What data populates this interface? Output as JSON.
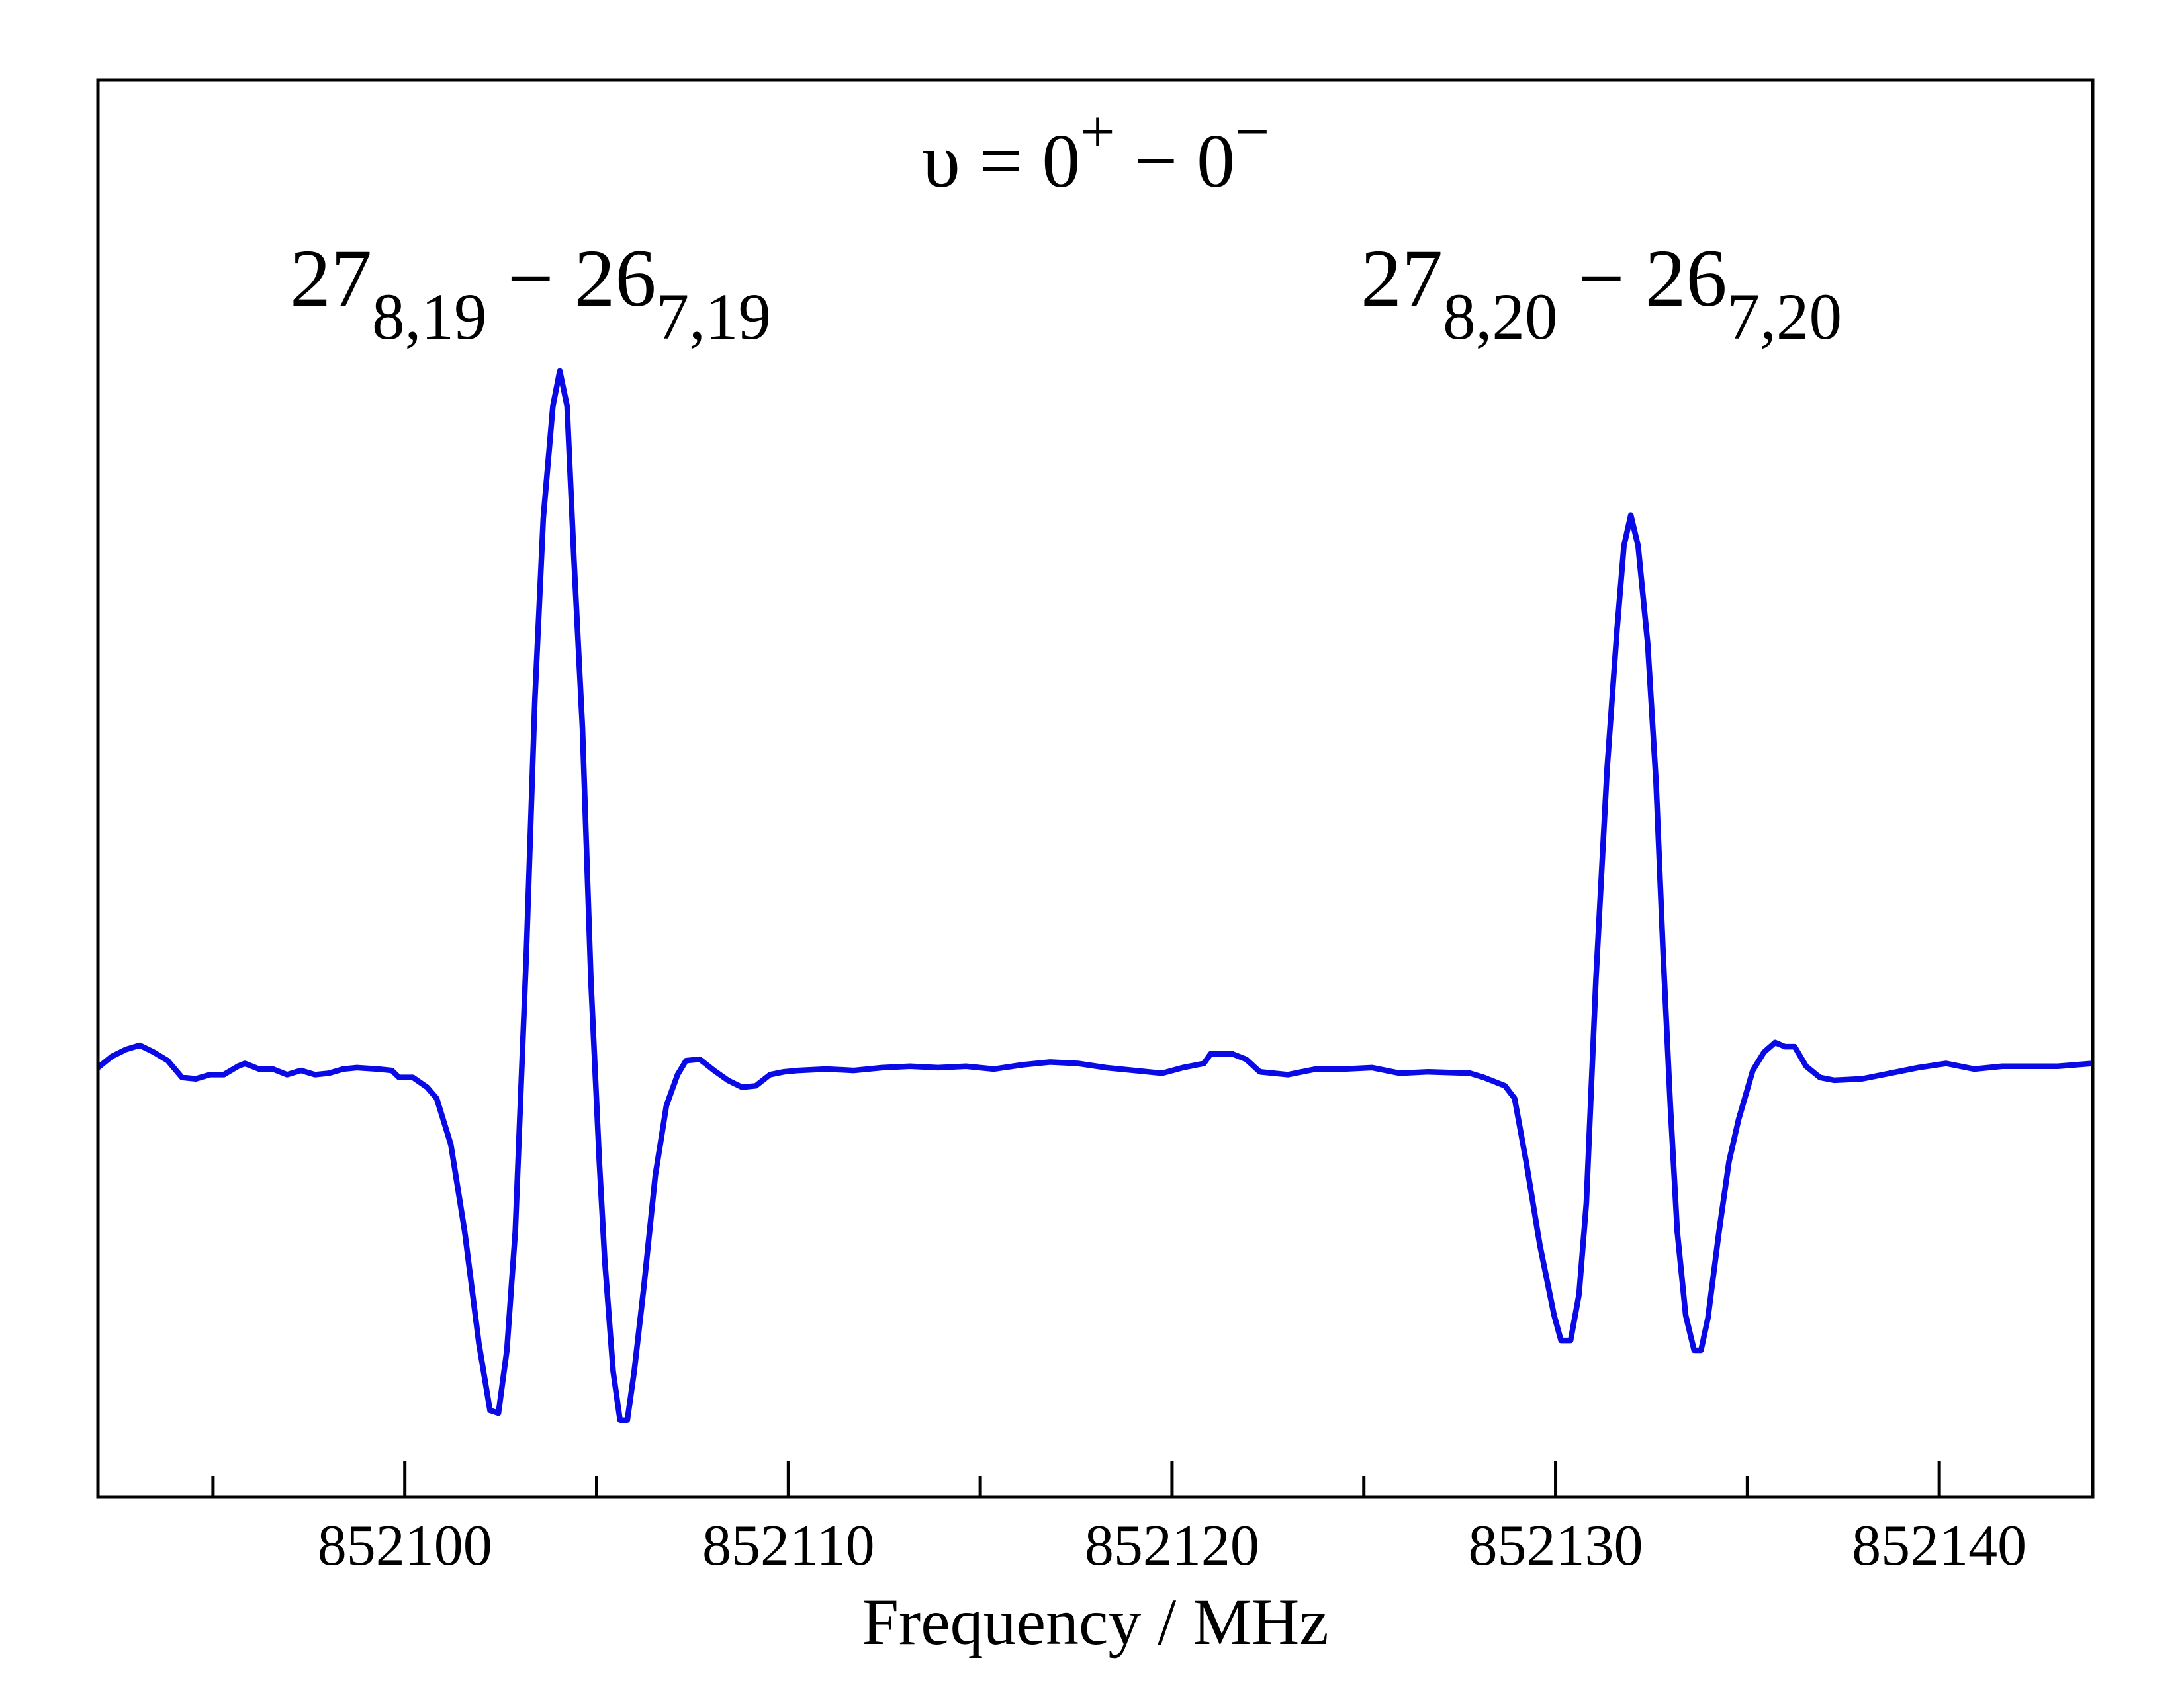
{
  "chart_data": {
    "type": "line",
    "xlabel": "Frequency / MHz",
    "color": "#0a0ae6",
    "xlim": [
      852092,
      852144
    ],
    "ylim": [
      -0.61,
      1.416
    ],
    "xticks": [
      852100,
      852110,
      852120,
      852130,
      852140
    ],
    "xminorticks": [
      852095,
      852105,
      852115,
      852125,
      852135
    ],
    "annotations": [
      {
        "segments": [
          {
            "text": "υ = 0"
          },
          {
            "sup": "+"
          },
          {
            "text": " − 0"
          },
          {
            "sup": "−"
          }
        ]
      },
      {
        "segments": [
          {
            "text": "27"
          },
          {
            "sub": "8,19"
          },
          {
            "text": " − 26"
          },
          {
            "sub": "7,19"
          }
        ]
      },
      {
        "segments": [
          {
            "text": "27"
          },
          {
            "sub": "8,20"
          },
          {
            "text": " − 26"
          },
          {
            "sub": "7,20"
          }
        ]
      }
    ],
    "x": [
      852092.0,
      852092.36,
      852092.73,
      852093.09,
      852093.46,
      852093.82,
      852094.19,
      852094.55,
      852094.92,
      852095.28,
      852095.65,
      852095.83,
      852096.2,
      852096.56,
      852096.93,
      852097.29,
      852097.66,
      852098.02,
      852098.39,
      852098.75,
      852099.3,
      852099.66,
      852099.85,
      852100.21,
      852100.58,
      852100.83,
      852101.2,
      852101.56,
      852101.93,
      852102.22,
      852102.44,
      852102.66,
      852102.88,
      852103.17,
      852103.39,
      852103.61,
      852103.86,
      852104.04,
      852104.23,
      852104.41,
      852104.63,
      852104.85,
      852105.07,
      852105.21,
      852105.43,
      852105.61,
      852105.8,
      852105.98,
      852106.23,
      852106.53,
      852106.82,
      852107.11,
      852107.33,
      852107.69,
      852108.06,
      852108.42,
      852108.79,
      852109.15,
      852109.52,
      852109.88,
      852110.25,
      852110.98,
      852111.71,
      852112.44,
      852113.17,
      852113.9,
      852114.63,
      852115.36,
      852116.09,
      852116.82,
      852117.55,
      852118.28,
      852119.01,
      852119.74,
      852120.28,
      852120.83,
      852121.01,
      852121.56,
      852121.93,
      852122.29,
      852123.02,
      852123.75,
      852124.48,
      852125.21,
      852125.94,
      852126.67,
      852127.77,
      852128.13,
      852128.68,
      852128.93,
      852129.23,
      852129.59,
      852129.96,
      852130.14,
      852130.39,
      852130.61,
      852130.8,
      852131.05,
      852131.34,
      852131.6,
      852131.78,
      852131.96,
      852132.15,
      852132.4,
      852132.62,
      852132.8,
      852132.99,
      852133.17,
      852133.39,
      852133.61,
      852133.79,
      852133.97,
      852134.26,
      852134.52,
      852134.77,
      852135.14,
      852135.43,
      852135.72,
      852135.98,
      852136.23,
      852136.53,
      852136.89,
      852137.26,
      852137.99,
      852138.72,
      852139.45,
      852140.18,
      852140.91,
      852141.64,
      852142.36,
      852143.09,
      852144.0
    ],
    "values": [
      0.004,
      0.02,
      0.03,
      0.036,
      0.026,
      0.014,
      -0.01,
      -0.012,
      -0.006,
      -0.006,
      0.006,
      0.01,
      0.002,
      0.002,
      -0.006,
      0,
      -0.006,
      -0.004,
      0.002,
      0.004,
      0.002,
      0,
      -0.01,
      -0.01,
      -0.024,
      -0.04,
      -0.106,
      -0.23,
      -0.39,
      -0.486,
      -0.49,
      -0.4,
      -0.23,
      0.17,
      0.53,
      0.79,
      0.95,
      1.0,
      0.95,
      0.73,
      0.49,
      0.13,
      -0.13,
      -0.27,
      -0.43,
      -0.5,
      -0.5,
      -0.43,
      -0.31,
      -0.15,
      -0.05,
      -0.006,
      0.014,
      0.016,
      0,
      -0.014,
      -0.024,
      -0.022,
      -0.006,
      -0.002,
      0,
      0.002,
      0,
      0.004,
      0.006,
      0.004,
      0.006,
      0.002,
      0.008,
      0.012,
      0.01,
      0.004,
      0,
      -0.004,
      0.004,
      0.01,
      0.024,
      0.024,
      0.016,
      -0.002,
      -0.006,
      0.002,
      0.002,
      0.004,
      -0.004,
      -0.002,
      -0.004,
      -0.01,
      -0.022,
      -0.04,
      -0.13,
      -0.25,
      -0.35,
      -0.386,
      -0.386,
      -0.32,
      -0.19,
      0.13,
      0.43,
      0.63,
      0.75,
      0.794,
      0.75,
      0.61,
      0.41,
      0.17,
      -0.05,
      -0.23,
      -0.35,
      -0.4,
      -0.4,
      -0.354,
      -0.23,
      -0.13,
      -0.07,
      0,
      0.026,
      0.04,
      0.034,
      0.034,
      0.006,
      -0.01,
      -0.014,
      -0.012,
      -0.004,
      0.004,
      0.01,
      0.002,
      0.006,
      0.006,
      0.006,
      0.01
    ]
  }
}
